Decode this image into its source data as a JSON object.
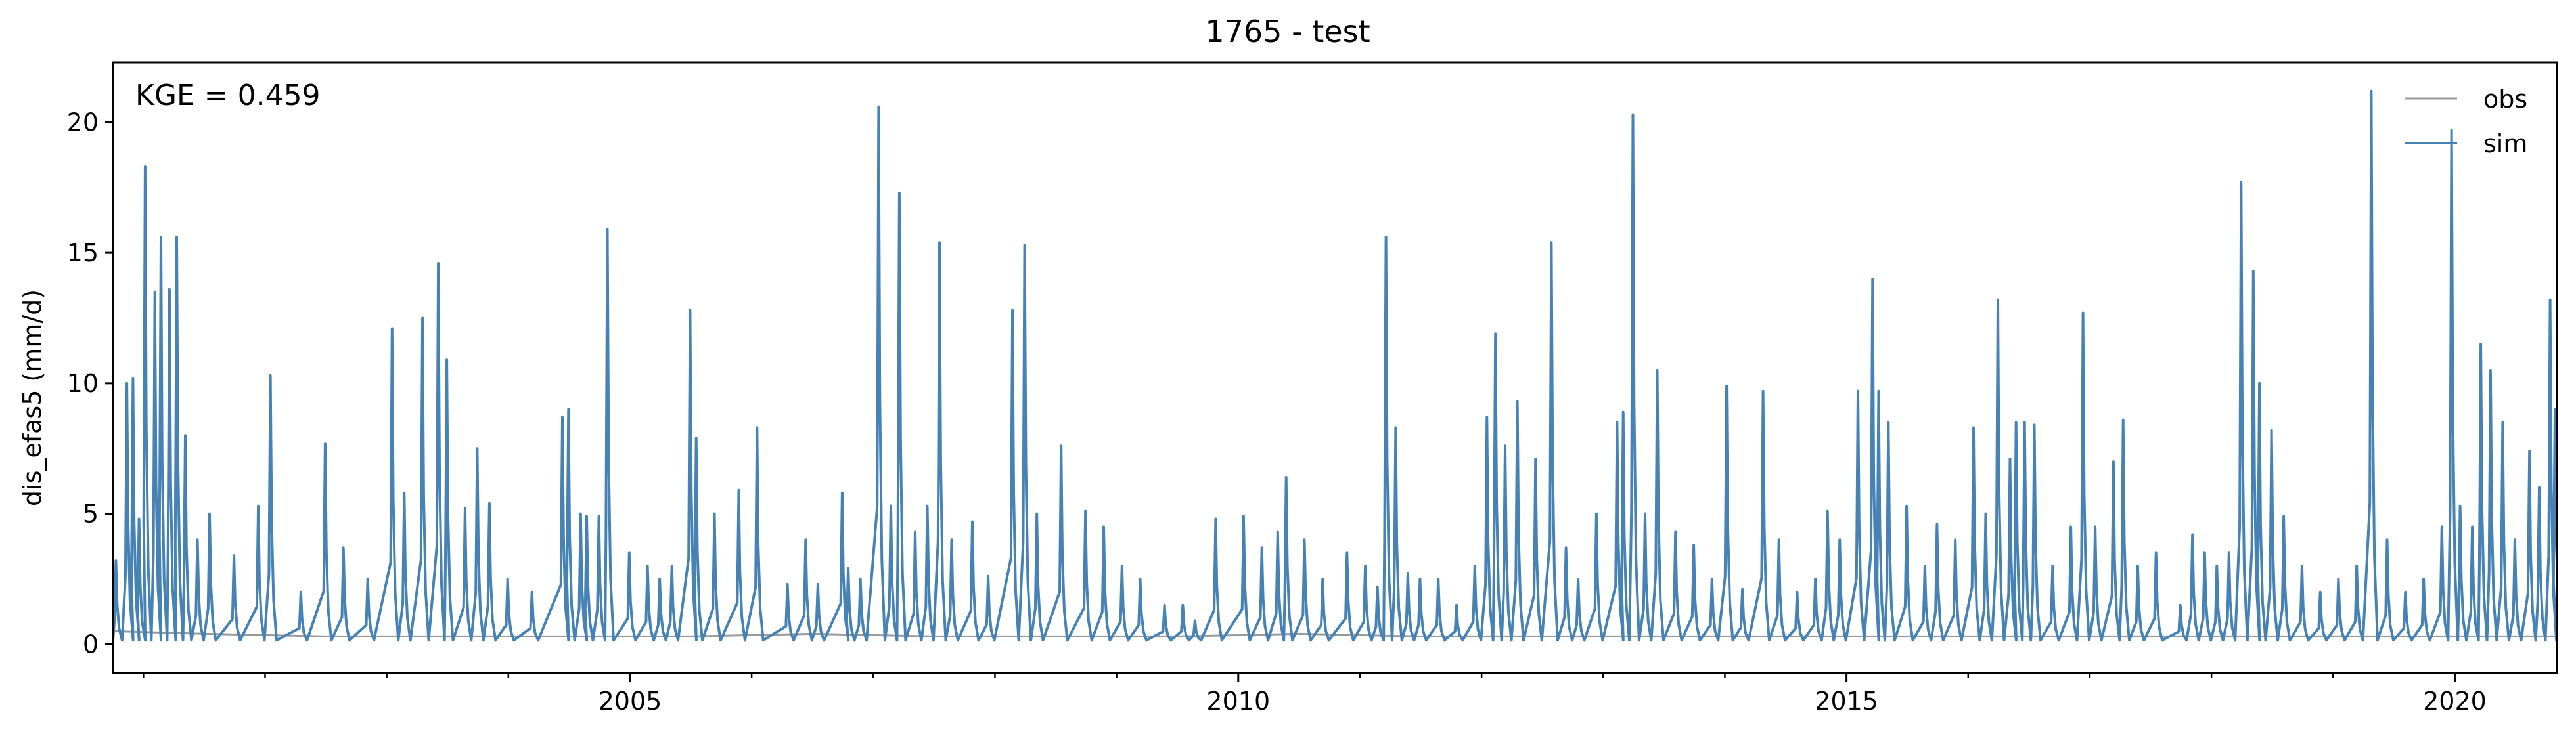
{
  "chart_data": {
    "type": "line",
    "title": "1765 - test",
    "xlabel": "",
    "ylabel": "dis_efas5 (mm/d)",
    "annotation": "KGE = 0.459",
    "xlim": [
      2000.75,
      2020.84
    ],
    "ylim": [
      -1.1,
      22.3
    ],
    "grid": false,
    "legend_placement": "top-right",
    "x_ticks": [
      2005,
      2010,
      2015,
      2020
    ],
    "x_tick_labels": [
      "2005",
      "2010",
      "2015",
      "2020"
    ],
    "y_ticks": [
      0,
      5,
      10,
      15,
      20
    ],
    "y_tick_labels": [
      "0",
      "5",
      "10",
      "15",
      "20"
    ],
    "series": [
      {
        "name": "obs",
        "color": "#999999",
        "x": [
          2000.75,
          2001.5,
          2002.5,
          2003.5,
          2004.5,
          2005.5,
          2006.5,
          2007.5,
          2008.5,
          2009.5,
          2010.5,
          2011.5,
          2012.5,
          2013.5,
          2014.5,
          2015.5,
          2016.5,
          2017.5,
          2018.5,
          2019.5,
          2020.84
        ],
        "y": [
          0.5,
          0.4,
          0.3,
          0.3,
          0.3,
          0.3,
          0.4,
          0.3,
          0.3,
          0.3,
          0.4,
          0.3,
          0.3,
          0.3,
          0.3,
          0.3,
          0.3,
          0.3,
          0.3,
          0.3,
          0.3
        ]
      },
      {
        "name": "sim",
        "color": "#4682b4",
        "baseline": 0.15,
        "peaks": [
          [
            2000.78,
            3.2
          ],
          [
            2000.87,
            10.0
          ],
          [
            2000.92,
            10.2
          ],
          [
            2000.97,
            4.8
          ],
          [
            2001.02,
            18.3
          ],
          [
            2001.1,
            13.5
          ],
          [
            2001.15,
            15.6
          ],
          [
            2001.22,
            13.6
          ],
          [
            2001.28,
            15.6
          ],
          [
            2001.35,
            8.0
          ],
          [
            2001.45,
            4.0
          ],
          [
            2001.55,
            5.0
          ],
          [
            2001.75,
            3.4
          ],
          [
            2001.95,
            5.3
          ],
          [
            2002.05,
            10.3
          ],
          [
            2002.3,
            2.0
          ],
          [
            2002.5,
            7.7
          ],
          [
            2002.65,
            3.7
          ],
          [
            2002.85,
            2.5
          ],
          [
            2003.05,
            12.1
          ],
          [
            2003.15,
            5.8
          ],
          [
            2003.3,
            12.5
          ],
          [
            2003.43,
            14.6
          ],
          [
            2003.5,
            10.9
          ],
          [
            2003.65,
            5.2
          ],
          [
            2003.75,
            7.5
          ],
          [
            2003.85,
            5.4
          ],
          [
            2004.0,
            2.5
          ],
          [
            2004.2,
            2.0
          ],
          [
            2004.45,
            8.7
          ],
          [
            2004.5,
            9.0
          ],
          [
            2004.6,
            5.0
          ],
          [
            2004.65,
            4.9
          ],
          [
            2004.75,
            4.9
          ],
          [
            2004.82,
            15.9
          ],
          [
            2005.0,
            3.5
          ],
          [
            2005.15,
            3.0
          ],
          [
            2005.25,
            2.5
          ],
          [
            2005.35,
            3.0
          ],
          [
            2005.5,
            12.8
          ],
          [
            2005.55,
            7.9
          ],
          [
            2005.7,
            5.0
          ],
          [
            2005.9,
            5.9
          ],
          [
            2006.05,
            8.3
          ],
          [
            2006.3,
            2.3
          ],
          [
            2006.45,
            4.0
          ],
          [
            2006.55,
            2.3
          ],
          [
            2006.75,
            5.8
          ],
          [
            2006.8,
            2.9
          ],
          [
            2006.9,
            2.5
          ],
          [
            2007.05,
            20.6
          ],
          [
            2007.15,
            5.3
          ],
          [
            2007.22,
            17.3
          ],
          [
            2007.35,
            4.3
          ],
          [
            2007.45,
            5.3
          ],
          [
            2007.55,
            15.4
          ],
          [
            2007.65,
            4.0
          ],
          [
            2007.82,
            4.7
          ],
          [
            2007.95,
            2.6
          ],
          [
            2008.15,
            12.8
          ],
          [
            2008.25,
            15.3
          ],
          [
            2008.35,
            5.0
          ],
          [
            2008.55,
            7.6
          ],
          [
            2008.75,
            5.1
          ],
          [
            2008.9,
            4.5
          ],
          [
            2009.05,
            3.0
          ],
          [
            2009.2,
            2.5
          ],
          [
            2009.4,
            1.5
          ],
          [
            2009.55,
            1.5
          ],
          [
            2009.65,
            0.9
          ],
          [
            2009.82,
            4.8
          ],
          [
            2010.05,
            4.9
          ],
          [
            2010.2,
            3.7
          ],
          [
            2010.33,
            4.3
          ],
          [
            2010.4,
            6.4
          ],
          [
            2010.55,
            4.0
          ],
          [
            2010.7,
            2.5
          ],
          [
            2010.9,
            3.5
          ],
          [
            2011.05,
            3.0
          ],
          [
            2011.15,
            2.2
          ],
          [
            2011.22,
            15.6
          ],
          [
            2011.3,
            8.3
          ],
          [
            2011.4,
            2.7
          ],
          [
            2011.5,
            2.5
          ],
          [
            2011.65,
            2.5
          ],
          [
            2011.8,
            1.5
          ],
          [
            2011.95,
            3.0
          ],
          [
            2012.05,
            8.7
          ],
          [
            2012.12,
            11.9
          ],
          [
            2012.2,
            7.6
          ],
          [
            2012.3,
            9.3
          ],
          [
            2012.45,
            7.1
          ],
          [
            2012.58,
            15.4
          ],
          [
            2012.7,
            3.7
          ],
          [
            2012.8,
            2.5
          ],
          [
            2012.95,
            5.0
          ],
          [
            2013.12,
            8.5
          ],
          [
            2013.17,
            8.9
          ],
          [
            2013.25,
            20.3
          ],
          [
            2013.35,
            5.0
          ],
          [
            2013.45,
            10.5
          ],
          [
            2013.6,
            4.3
          ],
          [
            2013.75,
            3.8
          ],
          [
            2013.9,
            2.5
          ],
          [
            2014.02,
            9.9
          ],
          [
            2014.15,
            2.1
          ],
          [
            2014.32,
            9.7
          ],
          [
            2014.45,
            4.0
          ],
          [
            2014.6,
            2.0
          ],
          [
            2014.75,
            2.5
          ],
          [
            2014.85,
            5.1
          ],
          [
            2014.95,
            4.0
          ],
          [
            2015.1,
            9.7
          ],
          [
            2015.22,
            14.0
          ],
          [
            2015.27,
            9.7
          ],
          [
            2015.35,
            8.5
          ],
          [
            2015.5,
            5.3
          ],
          [
            2015.65,
            3.0
          ],
          [
            2015.75,
            4.6
          ],
          [
            2015.9,
            4.0
          ],
          [
            2016.05,
            8.3
          ],
          [
            2016.15,
            5.0
          ],
          [
            2016.25,
            13.2
          ],
          [
            2016.35,
            7.1
          ],
          [
            2016.4,
            8.5
          ],
          [
            2016.47,
            8.5
          ],
          [
            2016.55,
            8.4
          ],
          [
            2016.7,
            3.0
          ],
          [
            2016.85,
            4.5
          ],
          [
            2016.95,
            12.7
          ],
          [
            2017.05,
            4.5
          ],
          [
            2017.2,
            7.0
          ],
          [
            2017.28,
            8.6
          ],
          [
            2017.4,
            3.0
          ],
          [
            2017.55,
            3.5
          ],
          [
            2017.75,
            1.5
          ],
          [
            2017.85,
            4.2
          ],
          [
            2017.95,
            3.5
          ],
          [
            2018.05,
            3.0
          ],
          [
            2018.15,
            3.5
          ],
          [
            2018.25,
            17.7
          ],
          [
            2018.35,
            14.3
          ],
          [
            2018.4,
            10.0
          ],
          [
            2018.5,
            8.2
          ],
          [
            2018.6,
            4.9
          ],
          [
            2018.75,
            3.0
          ],
          [
            2018.9,
            2.0
          ],
          [
            2019.05,
            2.5
          ],
          [
            2019.2,
            3.0
          ],
          [
            2019.32,
            21.2
          ],
          [
            2019.45,
            4.0
          ],
          [
            2019.6,
            2.0
          ],
          [
            2019.75,
            2.5
          ],
          [
            2019.9,
            4.5
          ],
          [
            2019.98,
            19.7
          ],
          [
            2020.05,
            5.3
          ],
          [
            2020.15,
            4.5
          ],
          [
            2020.22,
            11.5
          ],
          [
            2020.3,
            10.5
          ],
          [
            2020.4,
            8.5
          ],
          [
            2020.5,
            4.0
          ],
          [
            2020.62,
            7.4
          ],
          [
            2020.7,
            6.0
          ],
          [
            2020.79,
            13.2
          ],
          [
            2020.83,
            9.0
          ]
        ]
      }
    ]
  }
}
